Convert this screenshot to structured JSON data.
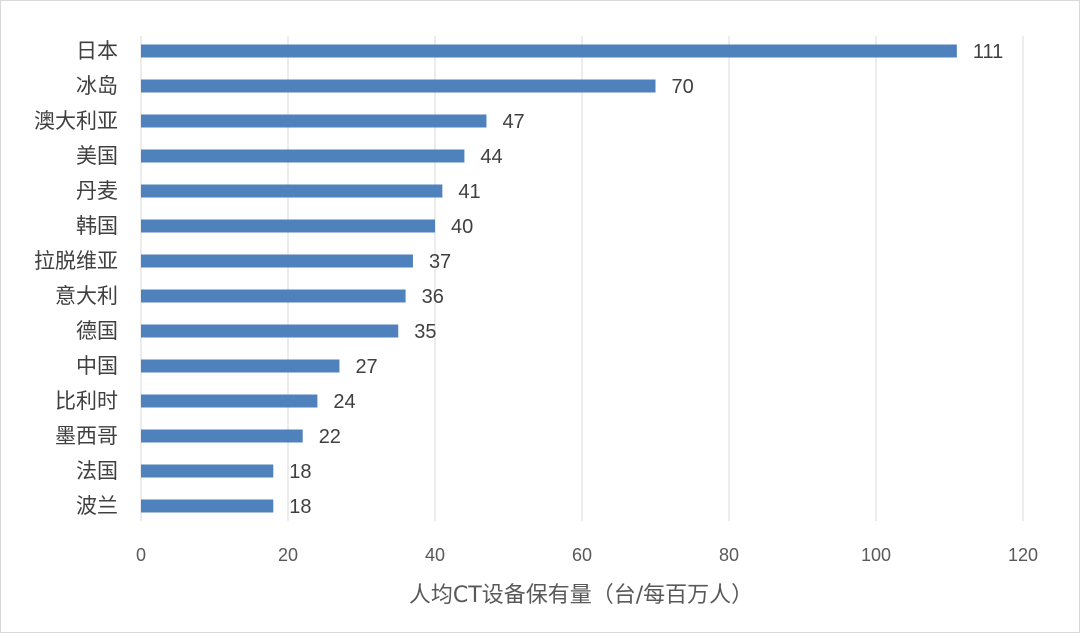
{
  "chart_data": {
    "type": "bar",
    "orientation": "horizontal",
    "title": "",
    "xlabel": "人均CT设备保有量（台/每百万人）",
    "ylabel": "",
    "categories": [
      "日本",
      "冰岛",
      "澳大利亚",
      "美国",
      "丹麦",
      "韩国",
      "拉脱维亚",
      "意大利",
      "德国",
      "中国",
      "比利时",
      "墨西哥",
      "法国",
      "波兰"
    ],
    "values": [
      111,
      70,
      47,
      44,
      41,
      40,
      37,
      36,
      35,
      27,
      24,
      22,
      18,
      18
    ],
    "xlim": [
      0,
      120
    ],
    "xticks": [
      0,
      20,
      40,
      60,
      80,
      100,
      120
    ],
    "grid": true,
    "legend": "none",
    "bar_color": "#4f81bd",
    "data_labels": true
  }
}
